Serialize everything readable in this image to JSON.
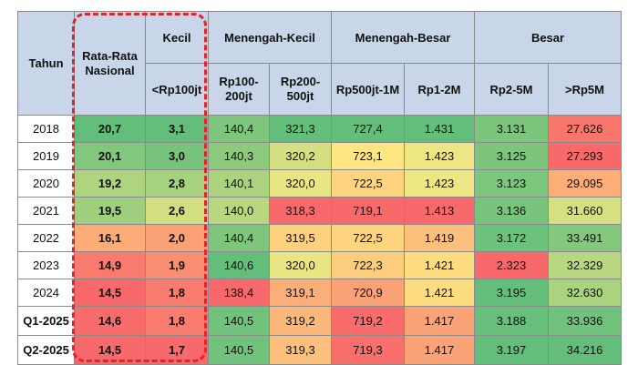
{
  "colors": {
    "header_bg": "#c9d6ea",
    "highlight_border": "#e3232b",
    "scale_green": "#63be7b",
    "scale_yellow": "#ffeb84",
    "scale_red": "#f8696b"
  },
  "header": {
    "tahun": "Tahun",
    "rata_rata": "Rata-Rata Nasional",
    "kecil": "Kecil",
    "menengah_kecil": "Menengah-Kecil",
    "menengah_besar": "Menengah-Besar",
    "besar": "Besar",
    "subs": [
      "<Rp100jt",
      "Rp100-200jt",
      "Rp200-500jt",
      "Rp500jt-1M",
      "Rp1-2M",
      "Rp2-5M",
      ">Rp5M"
    ]
  },
  "rows": [
    {
      "year": "2018",
      "values": [
        "20,7",
        "3,1",
        "140,4",
        "321,3",
        "727,4",
        "1.431",
        "3.131",
        "27.626"
      ]
    },
    {
      "year": "2019",
      "values": [
        "20,1",
        "3,0",
        "140,3",
        "320,2",
        "723,1",
        "1.423",
        "3.125",
        "27.293"
      ]
    },
    {
      "year": "2020",
      "values": [
        "19,2",
        "2,8",
        "140,1",
        "320,0",
        "722,5",
        "1.423",
        "3.123",
        "29.095"
      ]
    },
    {
      "year": "2021",
      "values": [
        "19,5",
        "2,6",
        "140,0",
        "318,3",
        "719,1",
        "1.413",
        "3.136",
        "31.660"
      ]
    },
    {
      "year": "2022",
      "values": [
        "16,1",
        "2,0",
        "140,4",
        "319,5",
        "722,5",
        "1.419",
        "3.172",
        "33.491"
      ]
    },
    {
      "year": "2023",
      "values": [
        "14,9",
        "1,9",
        "140,6",
        "320,0",
        "722,3",
        "1.421",
        "2.323",
        "32.329"
      ]
    },
    {
      "year": "2024",
      "values": [
        "14,5",
        "1,8",
        "138,4",
        "319,1",
        "720,9",
        "1.421",
        "3.195",
        "32.630"
      ]
    },
    {
      "year": "Q1-2025",
      "values": [
        "14,6",
        "1,8",
        "140,5",
        "319,2",
        "719,2",
        "1.417",
        "3.188",
        "33.936"
      ]
    },
    {
      "year": "Q2-2025",
      "values": [
        "14,5",
        "1,7",
        "140,5",
        "319,3",
        "719,3",
        "1.417",
        "3.197",
        "34.216"
      ]
    }
  ]
}
